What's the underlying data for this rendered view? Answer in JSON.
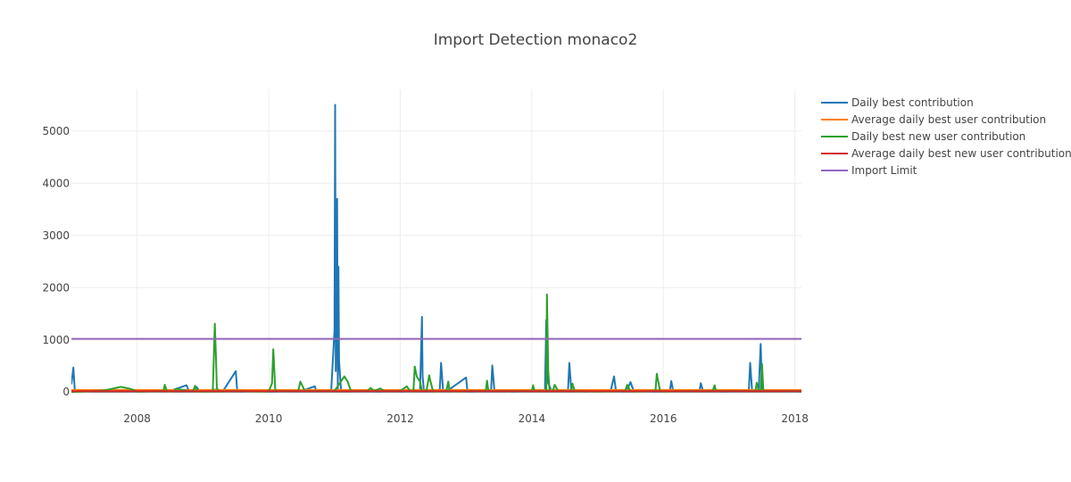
{
  "chart_data": {
    "type": "line",
    "title": "Import Detection monaco2",
    "xlabel": "",
    "ylabel": "",
    "xlim": [
      2007.0,
      2018.1
    ],
    "ylim": [
      -30,
      5800
    ],
    "x_ticks": [
      2008,
      2010,
      2012,
      2014,
      2016,
      2018
    ],
    "x_tick_labels": [
      "2008",
      "2010",
      "2012",
      "2014",
      "2016",
      "2018"
    ],
    "y_ticks": [
      0,
      1000,
      2000,
      3000,
      4000,
      5000
    ],
    "y_tick_labels": [
      "0",
      "1000",
      "2000",
      "3000",
      "4000",
      "5000"
    ],
    "grid": true,
    "legend_position": "right",
    "series": [
      {
        "name": "Daily best contribution",
        "color": "#1f77b4",
        "x": [
          2007.0,
          2007.03,
          2007.05,
          2007.08,
          2007.2,
          2007.7,
          2008.0,
          2008.5,
          2008.75,
          2008.78,
          2008.82,
          2008.9,
          2008.95,
          2009.0,
          2009.2,
          2009.3,
          2009.5,
          2009.52,
          2009.55,
          2009.9,
          2010.0,
          2010.5,
          2010.7,
          2010.72,
          2010.75,
          2010.95,
          2011.0,
          2011.01,
          2011.02,
          2011.03,
          2011.04,
          2011.05,
          2011.06,
          2011.07,
          2011.1,
          2011.3,
          2011.7,
          2011.9,
          2012.0,
          2012.3,
          2012.33,
          2012.34,
          2012.36,
          2012.4,
          2012.6,
          2012.62,
          2012.65,
          2012.7,
          2013.0,
          2013.02,
          2013.05,
          2013.38,
          2013.4,
          2013.43,
          2013.7,
          2014.0,
          2014.2,
          2014.22,
          2014.24,
          2014.3,
          2014.55,
          2014.57,
          2014.6,
          2014.8,
          2015.0,
          2015.2,
          2015.25,
          2015.28,
          2015.4,
          2015.45,
          2015.5,
          2015.55,
          2015.9,
          2015.92,
          2016.1,
          2016.12,
          2016.15,
          2016.55,
          2016.57,
          2016.6,
          2016.9,
          2017.3,
          2017.32,
          2017.35,
          2017.45,
          2017.48,
          2017.5,
          2017.6,
          2017.8,
          2018.1
        ],
        "y": [
          150,
          470,
          60,
          10,
          20,
          40,
          10,
          20,
          130,
          40,
          10,
          100,
          20,
          10,
          50,
          10,
          400,
          40,
          10,
          20,
          10,
          20,
          110,
          40,
          10,
          30,
          1180,
          5500,
          400,
          1200,
          3700,
          50,
          2400,
          600,
          40,
          20,
          10,
          30,
          10,
          20,
          1440,
          300,
          20,
          10,
          30,
          560,
          40,
          10,
          280,
          40,
          10,
          20,
          510,
          40,
          10,
          20,
          30,
          1380,
          200,
          20,
          20,
          560,
          40,
          10,
          20,
          30,
          300,
          20,
          10,
          40,
          190,
          20,
          10,
          40,
          20,
          210,
          20,
          20,
          170,
          30,
          10,
          20,
          560,
          20,
          40,
          920,
          50,
          20,
          20,
          10
        ]
      },
      {
        "name": "Average daily best user contribution",
        "color": "#ff7f0e",
        "x": [
          2007.0,
          2018.1
        ],
        "y": [
          40,
          40
        ]
      },
      {
        "name": "Daily best new user contribution",
        "color": "#2ca02c",
        "x": [
          2007.0,
          2007.5,
          2007.75,
          2007.9,
          2008.0,
          2008.4,
          2008.42,
          2008.45,
          2008.55,
          2008.6,
          2008.65,
          2008.85,
          2008.88,
          2008.92,
          2009.15,
          2009.18,
          2009.2,
          2009.21,
          2009.23,
          2009.5,
          2010.0,
          2010.05,
          2010.07,
          2010.1,
          2010.45,
          2010.48,
          2010.55,
          2011.0,
          2011.15,
          2011.2,
          2011.25,
          2011.5,
          2011.55,
          2011.6,
          2011.7,
          2011.75,
          2012.0,
          2012.1,
          2012.15,
          2012.2,
          2012.22,
          2012.25,
          2012.3,
          2012.33,
          2012.4,
          2012.44,
          2012.46,
          2012.5,
          2012.7,
          2012.73,
          2012.75,
          2013.0,
          2013.3,
          2013.32,
          2013.34,
          2014.0,
          2014.02,
          2014.04,
          2014.22,
          2014.23,
          2014.25,
          2014.27,
          2014.32,
          2014.35,
          2014.4,
          2014.6,
          2014.62,
          2014.65,
          2015.0,
          2015.42,
          2015.45,
          2015.5,
          2015.88,
          2015.9,
          2015.95,
          2016.0,
          2016.4,
          2016.75,
          2016.78,
          2016.8,
          2017.0,
          2017.4,
          2017.42,
          2017.45,
          2017.48,
          2017.5,
          2017.52,
          2018.1
        ],
        "y": [
          0,
          30,
          100,
          60,
          10,
          20,
          140,
          20,
          10,
          70,
          50,
          10,
          120,
          10,
          10,
          1310,
          600,
          100,
          10,
          20,
          10,
          170,
          820,
          20,
          20,
          200,
          20,
          20,
          300,
          200,
          20,
          20,
          80,
          20,
          70,
          20,
          20,
          110,
          20,
          10,
          490,
          300,
          200,
          20,
          30,
          320,
          200,
          10,
          20,
          200,
          10,
          20,
          20,
          220,
          20,
          20,
          130,
          20,
          20,
          1870,
          400,
          20,
          20,
          140,
          20,
          20,
          160,
          20,
          10,
          20,
          140,
          10,
          20,
          350,
          20,
          10,
          20,
          20,
          130,
          20,
          20,
          20,
          180,
          20,
          20,
          540,
          20,
          20
        ]
      },
      {
        "name": "Average daily best new user contribution",
        "color": "#d62728",
        "x": [
          2007.0,
          2018.1
        ],
        "y": [
          18,
          18
        ]
      },
      {
        "name": "Import Limit",
        "color": "#9467bd",
        "x": [
          2007.0,
          2018.1
        ],
        "y": [
          1020,
          1020
        ]
      }
    ]
  }
}
